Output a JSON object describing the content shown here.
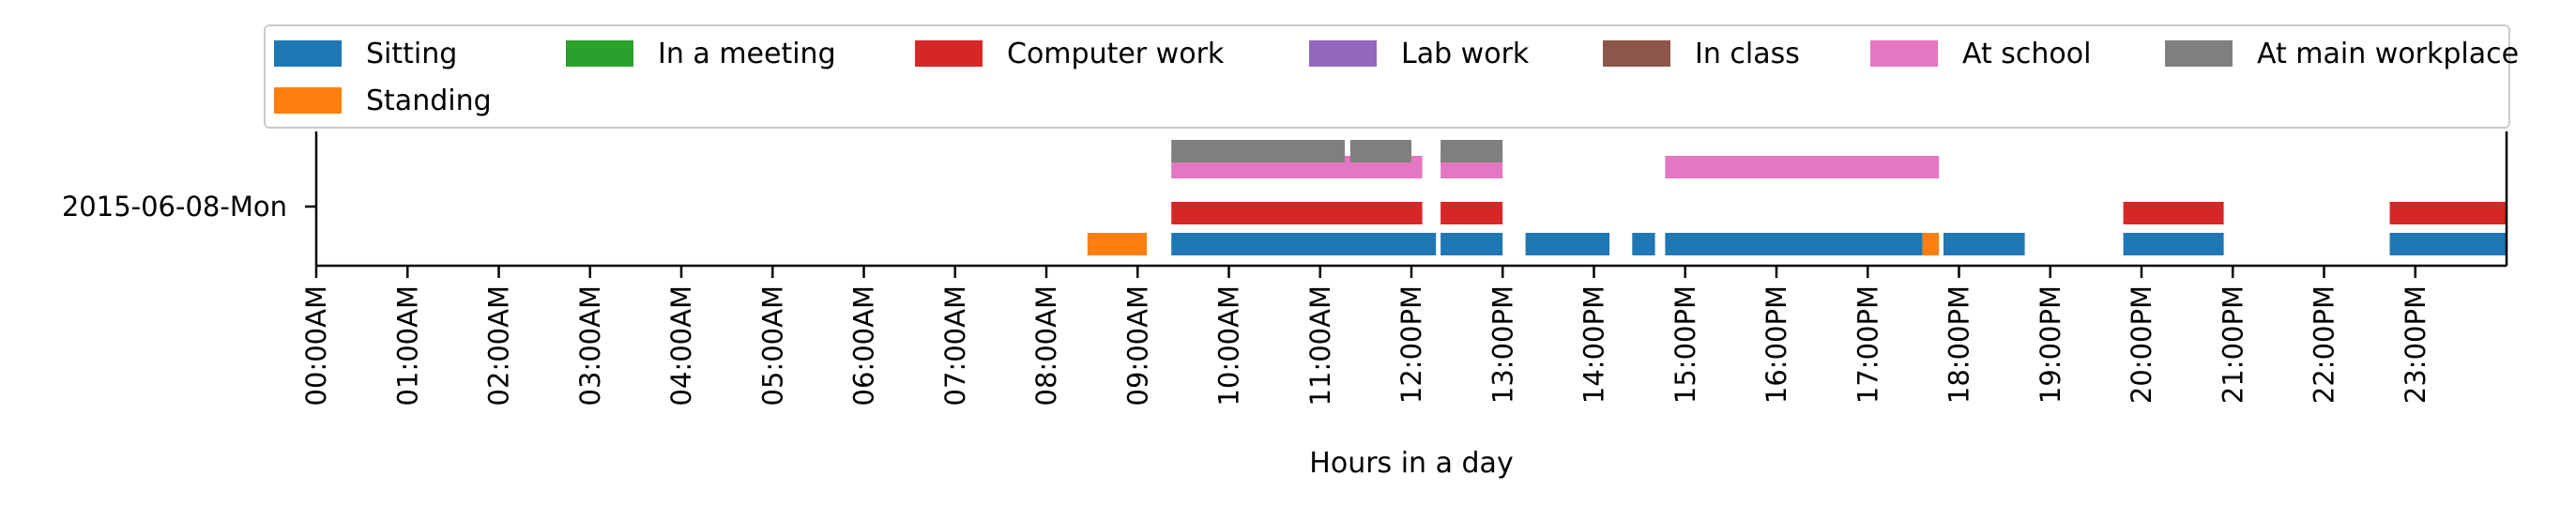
{
  "chart_data": {
    "type": "timeline",
    "xlabel": "Hours in a day",
    "xlim_hours": [
      0,
      24
    ],
    "y_category": "2015-06-08-Mon",
    "x_ticks": [
      "00:00AM",
      "01:00AM",
      "02:00AM",
      "03:00AM",
      "04:00AM",
      "05:00AM",
      "06:00AM",
      "07:00AM",
      "08:00AM",
      "09:00AM",
      "10:00AM",
      "11:00AM",
      "12:00PM",
      "13:00PM",
      "14:00PM",
      "15:00PM",
      "16:00PM",
      "17:00PM",
      "18:00PM",
      "19:00PM",
      "20:00PM",
      "21:00PM",
      "22:00PM",
      "23:00PM"
    ],
    "legend_position": "top",
    "legend": [
      {
        "label": "Sitting",
        "color": "#1f77b4"
      },
      {
        "label": "In a meeting",
        "color": "#2ca02c"
      },
      {
        "label": "Computer work",
        "color": "#d62728"
      },
      {
        "label": "Lab work",
        "color": "#9467bd"
      },
      {
        "label": "In class",
        "color": "#8c564b"
      },
      {
        "label": "At school",
        "color": "#e377c2"
      },
      {
        "label": "At main workplace",
        "color": "#7f7f7f"
      },
      {
        "label": "Standing",
        "color": "#ff7f0e"
      }
    ],
    "series": [
      {
        "name": "Sitting",
        "lane": 0,
        "color": "#1f77b4",
        "intervals": [
          [
            9.37,
            12.27
          ],
          [
            12.32,
            13.0
          ],
          [
            13.25,
            14.17
          ],
          [
            14.42,
            14.67
          ],
          [
            14.78,
            17.6
          ],
          [
            17.83,
            18.72
          ],
          [
            19.8,
            20.9
          ],
          [
            22.72,
            24.0
          ]
        ]
      },
      {
        "name": "Standing",
        "lane": 0,
        "color": "#ff7f0e",
        "intervals": [
          [
            8.45,
            9.1
          ],
          [
            17.6,
            17.78
          ]
        ]
      },
      {
        "name": "Computer work",
        "lane": 1,
        "color": "#d62728",
        "intervals": [
          [
            9.37,
            12.12
          ],
          [
            12.32,
            13.0
          ],
          [
            19.8,
            20.9
          ],
          [
            22.72,
            24.0
          ]
        ]
      },
      {
        "name": "At school",
        "lane": 2,
        "color": "#e377c2",
        "intervals": [
          [
            9.37,
            12.12
          ],
          [
            12.32,
            13.0
          ],
          [
            14.78,
            17.78
          ]
        ]
      },
      {
        "name": "At main workplace",
        "lane": 2.6,
        "color": "#7f7f7f",
        "intervals": [
          [
            9.37,
            11.27
          ],
          [
            11.33,
            12.0
          ],
          [
            12.32,
            13.0
          ]
        ]
      }
    ]
  }
}
